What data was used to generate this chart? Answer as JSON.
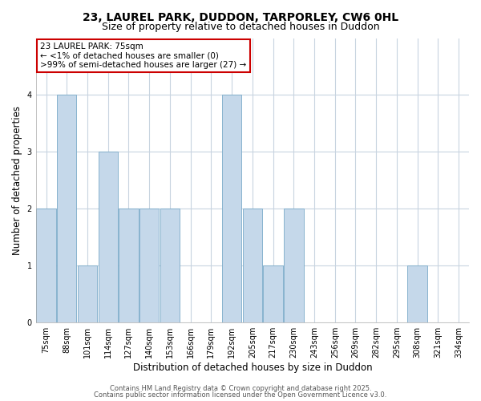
{
  "title_line1": "23, LAUREL PARK, DUDDON, TARPORLEY, CW6 0HL",
  "title_line2": "Size of property relative to detached houses in Duddon",
  "xlabel": "Distribution of detached houses by size in Duddon",
  "ylabel": "Number of detached properties",
  "categories": [
    "75sqm",
    "88sqm",
    "101sqm",
    "114sqm",
    "127sqm",
    "140sqm",
    "153sqm",
    "166sqm",
    "179sqm",
    "192sqm",
    "205sqm",
    "217sqm",
    "230sqm",
    "243sqm",
    "256sqm",
    "269sqm",
    "282sqm",
    "295sqm",
    "308sqm",
    "321sqm",
    "334sqm"
  ],
  "values": [
    2,
    4,
    1,
    3,
    2,
    2,
    2,
    0,
    0,
    4,
    2,
    1,
    2,
    0,
    0,
    0,
    0,
    0,
    1,
    0,
    0
  ],
  "bar_color_normal": "#c5d8ea",
  "bar_edge_color": "#7aaac8",
  "ylim": [
    0,
    5
  ],
  "yticks": [
    0,
    1,
    2,
    3,
    4
  ],
  "annotation_text": "23 LAUREL PARK: 75sqm\n← <1% of detached houses are smaller (0)\n>99% of semi-detached houses are larger (27) →",
  "annotation_box_color": "#ffffff",
  "annotation_box_edge_color": "#cc0000",
  "footer_line1": "Contains HM Land Registry data © Crown copyright and database right 2025.",
  "footer_line2": "Contains public sector information licensed under the Open Government Licence v3.0.",
  "background_color": "#ffffff",
  "grid_color": "#c8d4e0",
  "title_fontsize": 10,
  "subtitle_fontsize": 9,
  "tick_fontsize": 7,
  "ylabel_fontsize": 8.5,
  "xlabel_fontsize": 8.5,
  "annotation_fontsize": 7.5,
  "footer_fontsize": 6
}
